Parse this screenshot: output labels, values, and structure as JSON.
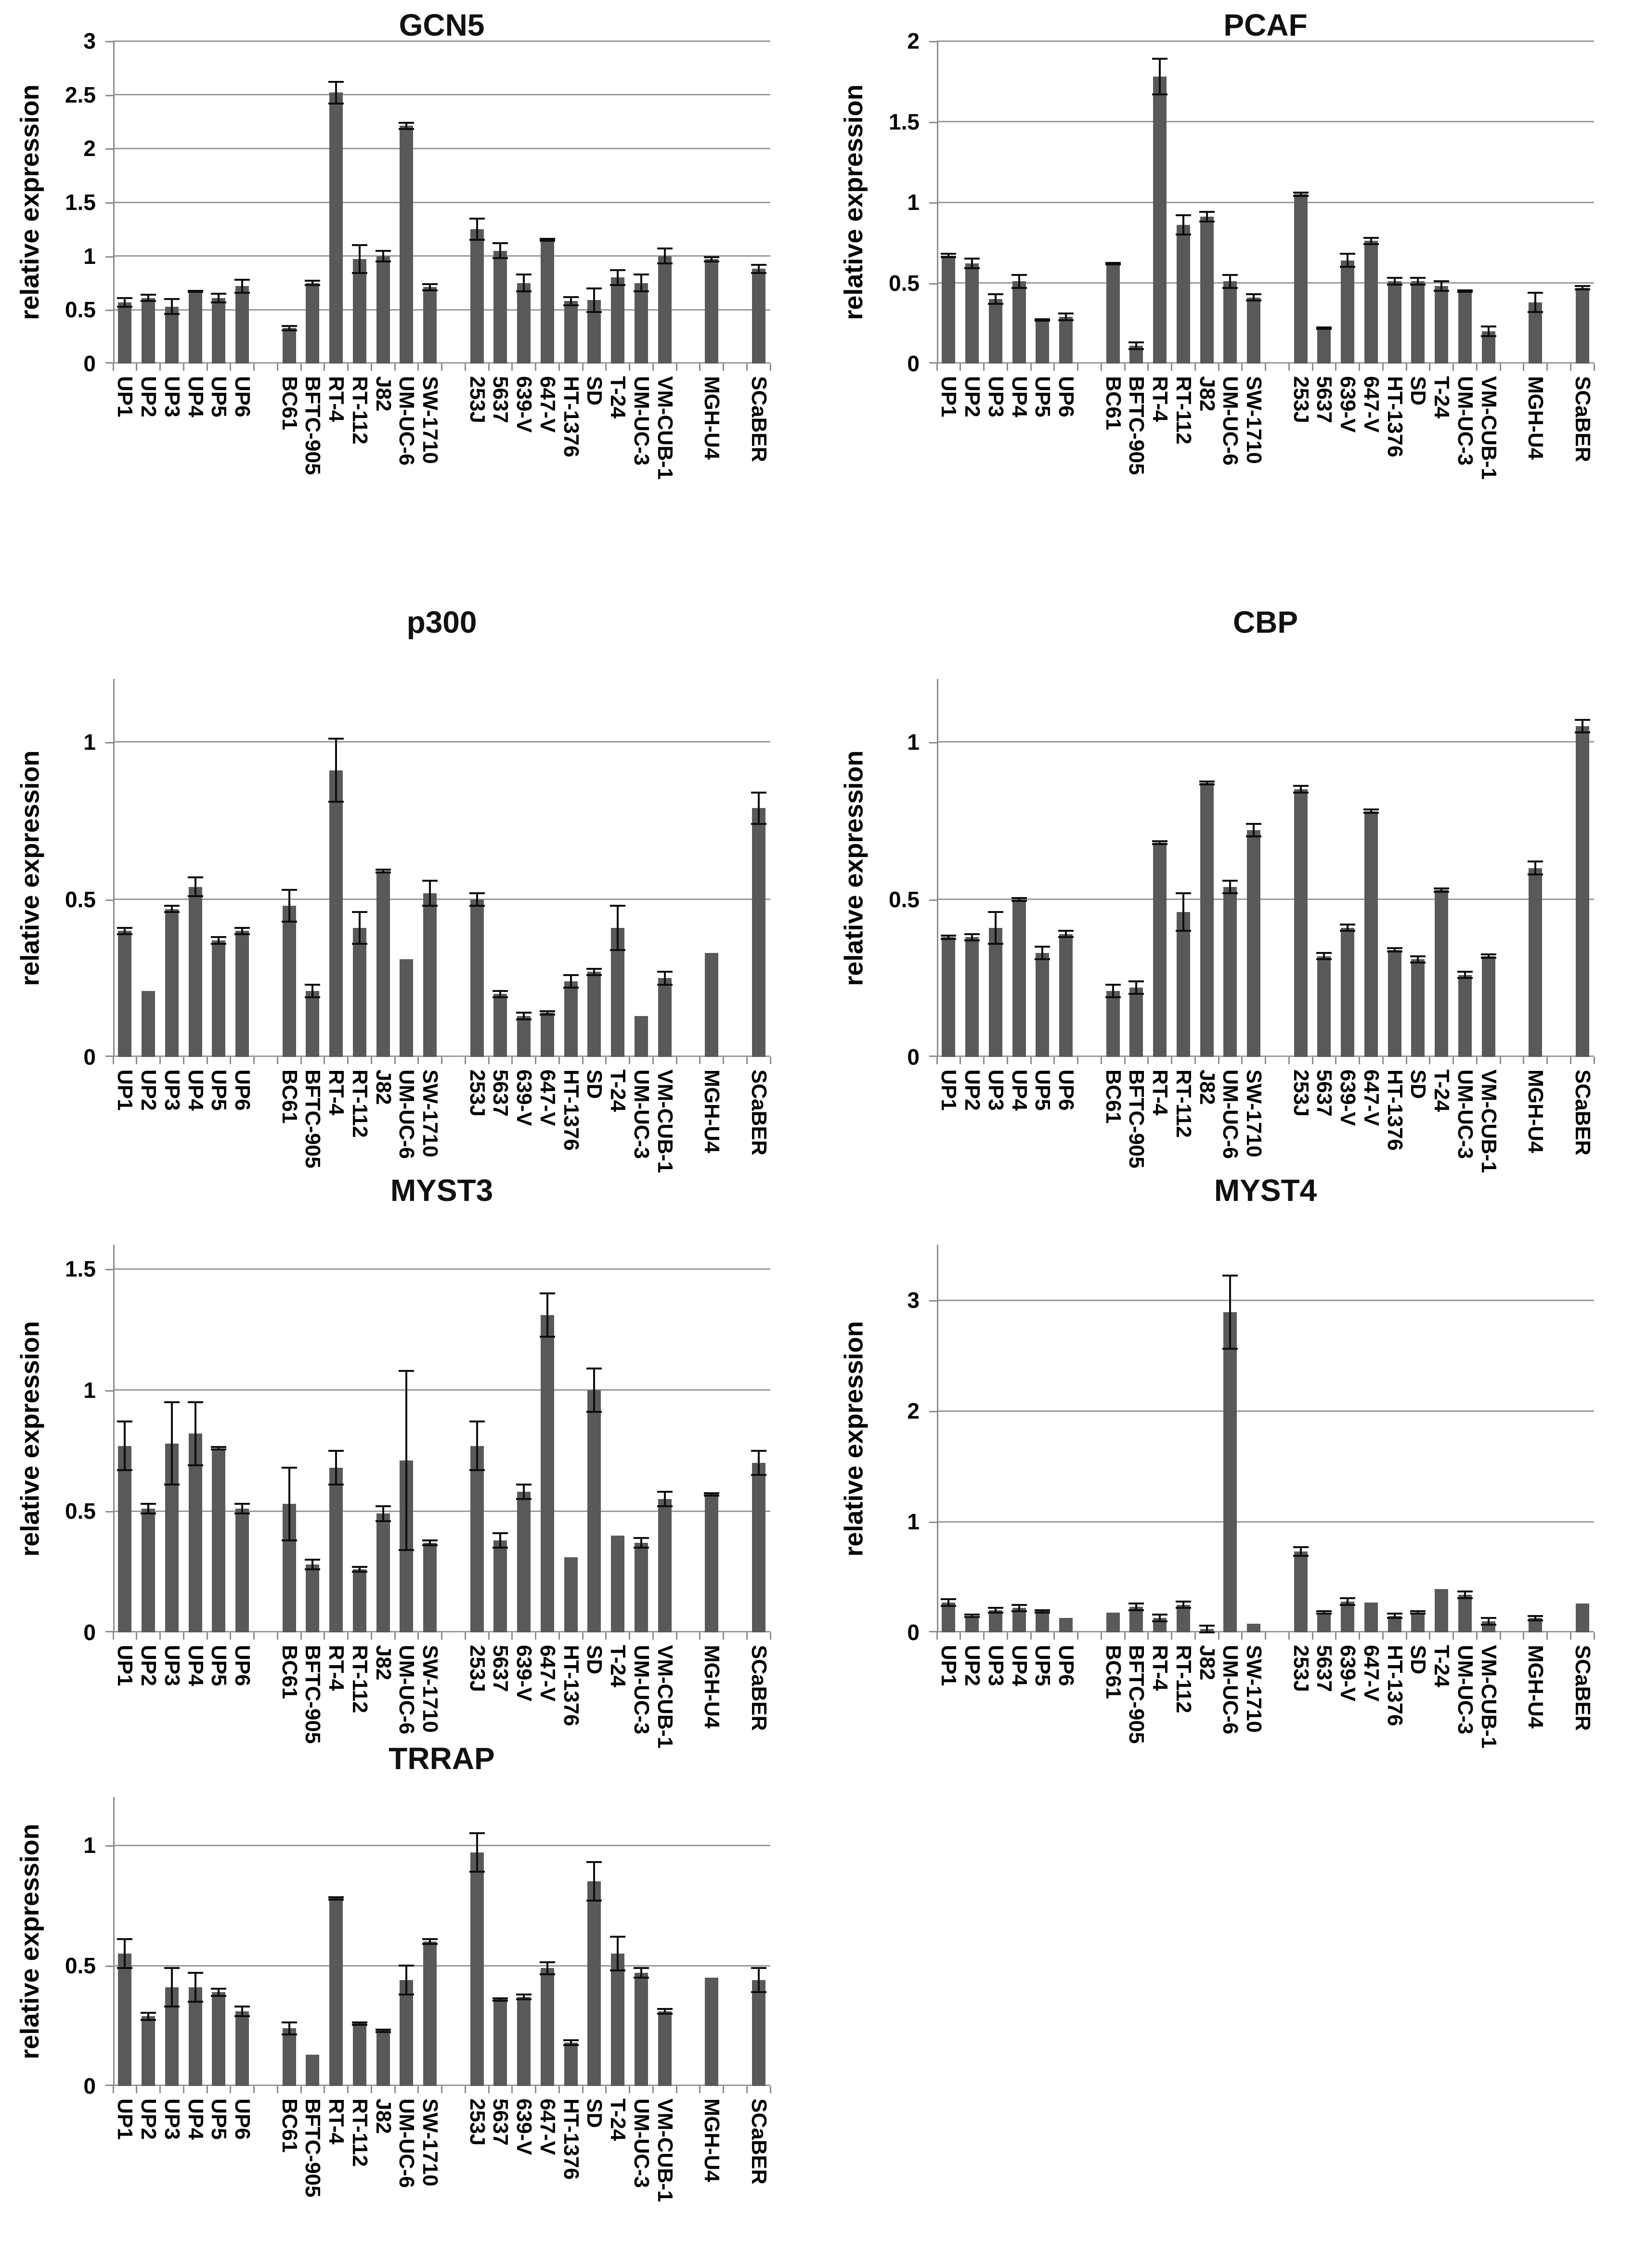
{
  "figure": {
    "ylabel": "relative expression"
  },
  "style": {
    "bar_color": "#595959",
    "grid_color": "#9a9a9a",
    "axis_color": "#8c8c8c",
    "error_color": "#0d0d0d",
    "text_color": "#000000",
    "background": "#ffffff"
  },
  "chart_data": {
    "type": "bar",
    "ylabel": "relative expression",
    "legend": "none",
    "grid": "horizontal",
    "categories": [
      "UP1",
      "UP2",
      "UP3",
      "UP4",
      "UP5",
      "UP6",
      "BC61",
      "BFTC-905",
      "RT-4",
      "RT-112",
      "J82",
      "UM-UC-6",
      "SW-1710",
      "253J",
      "5637",
      "639-V",
      "647-V",
      "HT-1376",
      "SD",
      "T-24",
      "UM-UC-3",
      "VM-CUB-1",
      "MGH-U4",
      "SCaBER"
    ],
    "category_groups": [
      6,
      7,
      9,
      1,
      1
    ],
    "charts": [
      {
        "title": "GCN5",
        "ylim": [
          0,
          3.0
        ],
        "yticks": [
          0,
          0.5,
          1,
          1.5,
          2,
          2.5,
          3
        ],
        "values": [
          0.57,
          0.61,
          0.53,
          0.67,
          0.61,
          0.72,
          0.33,
          0.75,
          2.52,
          0.97,
          1.0,
          2.21,
          0.71,
          1.25,
          1.05,
          0.75,
          1.15,
          0.58,
          0.59,
          0.8,
          0.75,
          1.0,
          0.97,
          0.88
        ],
        "errors": [
          0.04,
          0.03,
          0.07,
          0.005,
          0.04,
          0.06,
          0.02,
          0.02,
          0.1,
          0.13,
          0.05,
          0.03,
          0.03,
          0.1,
          0.07,
          0.08,
          0.01,
          0.04,
          0.11,
          0.07,
          0.08,
          0.07,
          0.02,
          0.04
        ]
      },
      {
        "title": "PCAF",
        "ylim": [
          0,
          2.0
        ],
        "yticks": [
          0,
          0.5,
          1,
          1.5,
          2
        ],
        "values": [
          0.67,
          0.62,
          0.4,
          0.51,
          0.27,
          0.29,
          0.62,
          0.11,
          1.78,
          0.86,
          0.91,
          0.51,
          0.41,
          1.05,
          0.22,
          0.64,
          0.76,
          0.51,
          0.51,
          0.48,
          0.45,
          0.2,
          0.38,
          0.47
        ],
        "errors": [
          0.01,
          0.03,
          0.03,
          0.04,
          0.005,
          0.02,
          0.005,
          0.02,
          0.11,
          0.06,
          0.03,
          0.04,
          0.02,
          0.01,
          0.005,
          0.04,
          0.02,
          0.02,
          0.02,
          0.03,
          0.005,
          0.03,
          0.06,
          0.01
        ]
      },
      {
        "title": "p300",
        "ylim": [
          0,
          1.2
        ],
        "yticks": [
          0,
          0.5,
          1
        ],
        "values": [
          0.4,
          0.21,
          0.47,
          0.54,
          0.37,
          0.4,
          0.48,
          0.21,
          0.91,
          0.41,
          0.59,
          0.31,
          0.52,
          0.5,
          0.2,
          0.13,
          0.14,
          0.24,
          0.27,
          0.41,
          0.13,
          0.25,
          0.33,
          0.79
        ],
        "errors": [
          0.01,
          0,
          0.01,
          0.03,
          0.01,
          0.01,
          0.05,
          0.02,
          0.1,
          0.05,
          0.005,
          0,
          0.04,
          0.02,
          0.01,
          0.01,
          0.005,
          0.02,
          0.01,
          0.07,
          0,
          0.02,
          0,
          0.05
        ]
      },
      {
        "title": "CBP",
        "ylim": [
          0,
          1.2
        ],
        "yticks": [
          0,
          0.5,
          1
        ],
        "values": [
          0.38,
          0.38,
          0.41,
          0.5,
          0.33,
          0.39,
          0.21,
          0.22,
          0.68,
          0.46,
          0.87,
          0.54,
          0.72,
          0.85,
          0.32,
          0.41,
          0.78,
          0.34,
          0.31,
          0.53,
          0.26,
          0.32,
          0.6,
          1.05
        ],
        "errors": [
          0.005,
          0.01,
          0.05,
          0.005,
          0.02,
          0.01,
          0.02,
          0.02,
          0.005,
          0.06,
          0.005,
          0.02,
          0.02,
          0.01,
          0.01,
          0.01,
          0.005,
          0.005,
          0.01,
          0.005,
          0.01,
          0.005,
          0.02,
          0.02
        ]
      },
      {
        "title": "MYST3",
        "ylim": [
          0,
          1.6
        ],
        "yticks": [
          0,
          0.5,
          1,
          1.5
        ],
        "values": [
          0.77,
          0.51,
          0.78,
          0.82,
          0.76,
          0.51,
          0.53,
          0.28,
          0.68,
          0.26,
          0.49,
          0.71,
          0.37,
          0.77,
          0.38,
          0.58,
          1.31,
          0.31,
          1.0,
          0.4,
          0.37,
          0.55,
          0.57,
          0.7
        ],
        "errors": [
          0.1,
          0.02,
          0.17,
          0.13,
          0.005,
          0.02,
          0.15,
          0.02,
          0.07,
          0.01,
          0.03,
          0.37,
          0.01,
          0.1,
          0.03,
          0.03,
          0.09,
          0,
          0.09,
          0,
          0.02,
          0.03,
          0.005,
          0.05
        ]
      },
      {
        "title": "MYST4",
        "ylim": [
          0,
          3.5
        ],
        "yticks": [
          0,
          1,
          2,
          3
        ],
        "values": [
          0.27,
          0.15,
          0.2,
          0.22,
          0.19,
          0.13,
          0.18,
          0.23,
          0.13,
          0.25,
          0.03,
          2.89,
          0.08,
          0.73,
          0.18,
          0.28,
          0.27,
          0.15,
          0.18,
          0.39,
          0.34,
          0.1,
          0.13,
          0.26
        ],
        "errors": [
          0.03,
          0.01,
          0.02,
          0.03,
          0.01,
          0,
          0,
          0.03,
          0.03,
          0.03,
          0.03,
          0.33,
          0,
          0.04,
          0.01,
          0.03,
          0,
          0.02,
          0.01,
          0,
          0.03,
          0.03,
          0.02,
          0
        ]
      },
      {
        "title": "TRRAP",
        "ylim": [
          0,
          1.2
        ],
        "yticks": [
          0,
          0.5,
          1
        ],
        "values": [
          0.55,
          0.29,
          0.41,
          0.41,
          0.39,
          0.31,
          0.24,
          0.13,
          0.78,
          0.26,
          0.23,
          0.44,
          0.6,
          0.97,
          0.36,
          0.37,
          0.49,
          0.18,
          0.85,
          0.55,
          0.47,
          0.31,
          0.45,
          0.44
        ],
        "errors": [
          0.06,
          0.015,
          0.08,
          0.06,
          0.015,
          0.02,
          0.025,
          0,
          0.005,
          0.005,
          0.005,
          0.06,
          0.01,
          0.08,
          0.005,
          0.01,
          0.025,
          0.01,
          0.08,
          0.07,
          0.02,
          0.01,
          0,
          0.05
        ]
      }
    ]
  }
}
